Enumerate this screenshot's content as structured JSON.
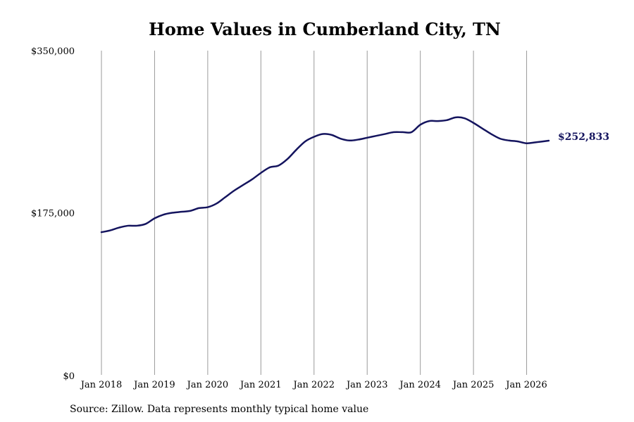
{
  "chart_data": {
    "type": "line",
    "title": "Home Values in Cumberland City, TN",
    "xlabel": "",
    "ylabel": "",
    "y_tick_labels": [
      "$0",
      "$175,000",
      "$350,000"
    ],
    "y_ticks": [
      0,
      175000,
      350000
    ],
    "ylim": [
      0,
      350000
    ],
    "x_tick_labels": [
      "Jan 2018",
      "Jan 2019",
      "Jan 2020",
      "Jan 2021",
      "Jan 2022",
      "Jan 2023",
      "Jan 2024",
      "Jan 2025",
      "Jan 2026"
    ],
    "x_ticks": [
      "2018-01",
      "2019-01",
      "2020-01",
      "2021-01",
      "2022-01",
      "2023-01",
      "2024-01",
      "2025-01",
      "2026-01"
    ],
    "xlim": [
      "2018-01",
      "2026-06"
    ],
    "grid": "vertical",
    "end_label": "$252,833",
    "line_color": "#14145e",
    "series": [
      {
        "x": [
          "2018-01",
          "2018-03",
          "2018-05",
          "2018-07",
          "2018-09",
          "2018-11",
          "2019-01",
          "2019-03",
          "2019-05",
          "2019-07",
          "2019-09",
          "2019-11",
          "2020-01",
          "2020-03",
          "2020-05",
          "2020-07",
          "2020-09",
          "2020-11",
          "2021-01",
          "2021-03",
          "2021-05",
          "2021-07",
          "2021-09",
          "2021-11",
          "2022-01",
          "2022-03",
          "2022-05",
          "2022-07",
          "2022-09",
          "2022-11",
          "2023-01",
          "2023-03",
          "2023-05",
          "2023-07",
          "2023-09",
          "2023-11",
          "2024-01",
          "2024-03",
          "2024-05",
          "2024-07",
          "2024-09",
          "2024-11",
          "2025-01",
          "2025-03",
          "2025-05",
          "2025-07",
          "2025-09",
          "2025-11",
          "2026-01",
          "2026-03",
          "2026-06"
        ],
        "values": [
          154000,
          156000,
          159000,
          161000,
          161000,
          163000,
          169000,
          173000,
          175000,
          176000,
          177000,
          180000,
          181000,
          185000,
          192000,
          199000,
          205000,
          211000,
          218000,
          224000,
          226000,
          233000,
          243000,
          252000,
          257000,
          260000,
          259000,
          255000,
          253000,
          254000,
          256000,
          258000,
          260000,
          262000,
          262000,
          262000,
          270000,
          274000,
          274000,
          275000,
          278000,
          277000,
          272000,
          266000,
          260000,
          255000,
          253000,
          252000,
          250000,
          251000,
          252833
        ]
      }
    ]
  },
  "source": "Source: Zillow. Data represents monthly typical home value"
}
